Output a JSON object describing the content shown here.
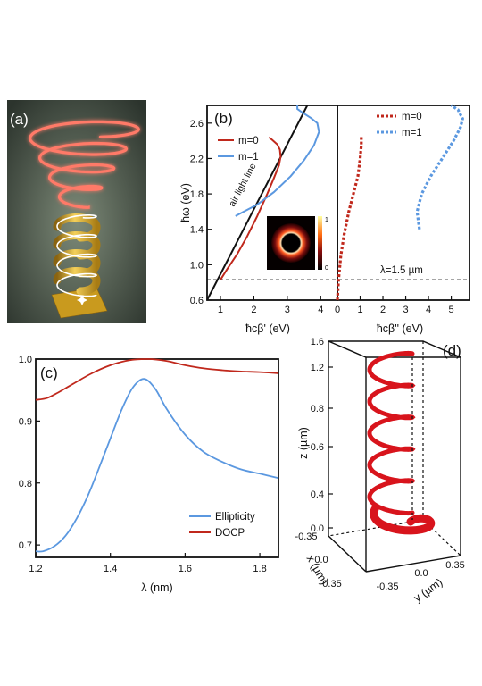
{
  "figure": {
    "panel_a": {
      "label": "(a)"
    },
    "panel_b": {
      "label": "(b)"
    },
    "panel_c": {
      "label": "(c)"
    },
    "panel_d": {
      "label": "(d)"
    }
  },
  "colors": {
    "red": "#c0281c",
    "blue": "#5b98e0",
    "black": "#111111",
    "glow": "#ff7060",
    "gold": "#d8a820"
  },
  "chart_data": [
    {
      "id": "b_left",
      "type": "line",
      "xlabel": "ħcβ' (eV)",
      "ylabel": "ħω (eV)",
      "xlim": [
        0.6,
        4.5
      ],
      "ylim": [
        0.6,
        2.8
      ],
      "xticks": [
        1,
        2,
        3,
        4
      ],
      "yticks": [
        0.6,
        1.0,
        1.4,
        1.8,
        2.2,
        2.6
      ],
      "annotation": "air light line",
      "hline": {
        "y": 0.83,
        "label": "λ=1.5 µm"
      },
      "inset_colorbar": {
        "max": "1",
        "min": "0"
      },
      "series": [
        {
          "name": "m=0",
          "color": "#c0281c",
          "x": [
            1.0,
            1.2,
            1.5,
            1.8,
            2.1,
            2.4,
            2.6,
            2.75,
            2.8,
            2.78,
            2.7,
            2.55,
            2.45
          ],
          "y": [
            0.83,
            0.95,
            1.12,
            1.32,
            1.55,
            1.8,
            1.98,
            2.12,
            2.22,
            2.3,
            2.36,
            2.41,
            2.44
          ]
        },
        {
          "name": "m=1",
          "color": "#5b98e0",
          "x": [
            1.45,
            1.7,
            2.1,
            2.6,
            3.1,
            3.5,
            3.8,
            3.95,
            3.9,
            3.7,
            3.45,
            3.3,
            3.3
          ],
          "y": [
            1.55,
            1.6,
            1.68,
            1.82,
            2.0,
            2.18,
            2.35,
            2.5,
            2.6,
            2.66,
            2.72,
            2.76,
            2.8
          ]
        },
        {
          "name": "air light line",
          "color": "#111111",
          "x": [
            0.6,
            3.6
          ],
          "y": [
            0.6,
            2.8
          ]
        }
      ]
    },
    {
      "id": "b_right",
      "type": "line",
      "xlabel": "ħcβ'' (eV)",
      "xlim": [
        0,
        5.8
      ],
      "ylim": [
        0.6,
        2.8
      ],
      "xticks": [
        0,
        1,
        2,
        3,
        4,
        5
      ],
      "series": [
        {
          "name": "m=0",
          "color": "#c0281c",
          "dashed": true,
          "x": [
            0.0,
            0.05,
            0.15,
            0.3,
            0.5,
            0.7,
            0.9,
            1.0,
            1.05,
            1.05
          ],
          "y": [
            0.6,
            0.83,
            1.1,
            1.35,
            1.6,
            1.8,
            2.0,
            2.2,
            2.35,
            2.45
          ]
        },
        {
          "name": "m=1",
          "color": "#5b98e0",
          "dashed": true,
          "x": [
            3.6,
            3.5,
            3.7,
            4.1,
            4.6,
            5.1,
            5.4,
            5.5,
            5.3,
            5.0
          ],
          "y": [
            1.4,
            1.6,
            1.8,
            2.0,
            2.2,
            2.4,
            2.55,
            2.65,
            2.75,
            2.8
          ]
        }
      ]
    },
    {
      "id": "c",
      "type": "line",
      "xlabel": "λ (nm)",
      "xlim": [
        1.2,
        1.85
      ],
      "ylim": [
        0.68,
        1.0
      ],
      "xticks": [
        1.2,
        1.4,
        1.6,
        1.8
      ],
      "yticks": [
        0.7,
        0.8,
        0.9,
        1.0
      ],
      "legend_position": "bottom-right",
      "series": [
        {
          "name": "Ellipticity",
          "color": "#5b98e0",
          "x": [
            1.2,
            1.22,
            1.25,
            1.28,
            1.31,
            1.34,
            1.37,
            1.4,
            1.43,
            1.46,
            1.49,
            1.52,
            1.55,
            1.6,
            1.65,
            1.7,
            1.75,
            1.8,
            1.85
          ],
          "y": [
            0.69,
            0.69,
            0.698,
            0.715,
            0.743,
            0.78,
            0.825,
            0.872,
            0.918,
            0.954,
            0.968,
            0.952,
            0.92,
            0.878,
            0.85,
            0.834,
            0.822,
            0.815,
            0.808
          ]
        },
        {
          "name": "DOCP",
          "color": "#c0281c",
          "x": [
            1.2,
            1.23,
            1.26,
            1.3,
            1.35,
            1.4,
            1.45,
            1.5,
            1.55,
            1.6,
            1.65,
            1.7,
            1.75,
            1.8,
            1.85
          ],
          "y": [
            0.934,
            0.937,
            0.946,
            0.96,
            0.977,
            0.99,
            0.998,
            1.0,
            0.997,
            0.99,
            0.985,
            0.982,
            0.98,
            0.979,
            0.977
          ]
        }
      ]
    },
    {
      "id": "d",
      "type": "line",
      "xlabel": "x (µm)",
      "ylabel": "z (µm)",
      "y2label": "y (µm)",
      "zticks": [
        "0.0",
        "0.4",
        "0.6",
        "0.8",
        "1.2",
        "1.6"
      ],
      "xticks": [
        "-0.35",
        "0.0",
        "0.35"
      ],
      "yticks": [
        "0.35",
        "0.0",
        "-0.35"
      ]
    }
  ]
}
